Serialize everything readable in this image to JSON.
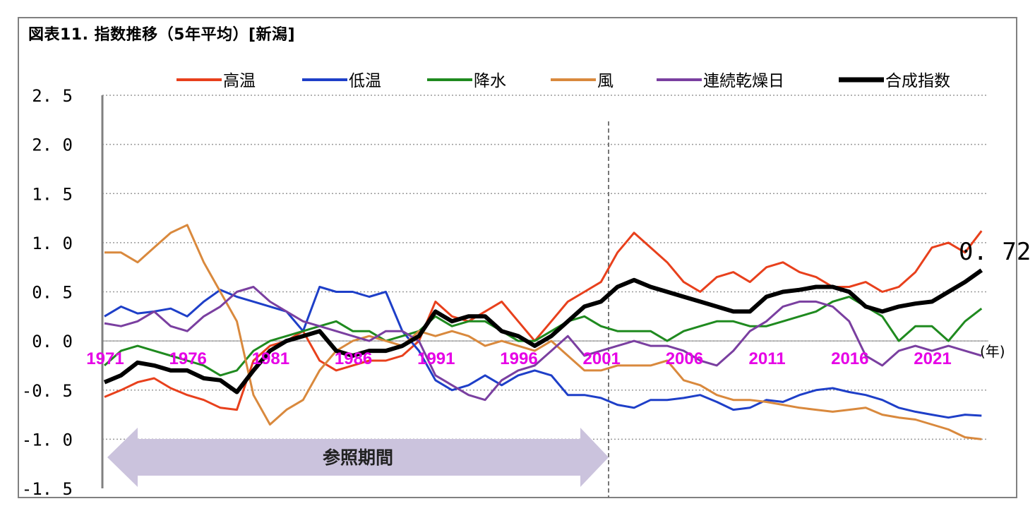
{
  "title": "図表11. 指数推移（5年平均）[新潟]",
  "chart_data": {
    "type": "line",
    "ylim": [
      -1.5,
      2.5
    ],
    "yticks": [
      "2.5",
      "2.0",
      "1.5",
      "1.0",
      "0.5",
      "0.0",
      "-0.5",
      "-1.0",
      "-1.5"
    ],
    "xlim": [
      1971,
      2024
    ],
    "xticks": [
      "1971",
      "1976",
      "1981",
      "1986",
      "1991",
      "1996",
      "2001",
      "2006",
      "2011",
      "2016",
      "2021"
    ],
    "x_unit": "(年)",
    "reference_period_label": "参照期間",
    "final_value_label": "0.72",
    "x": [
      1971,
      1972,
      1973,
      1974,
      1975,
      1976,
      1977,
      1978,
      1979,
      1980,
      1981,
      1982,
      1983,
      1984,
      1985,
      1986,
      1987,
      1988,
      1989,
      1990,
      1991,
      1992,
      1993,
      1994,
      1995,
      1996,
      1997,
      1998,
      1999,
      2000,
      2001,
      2002,
      2003,
      2004,
      2005,
      2006,
      2007,
      2008,
      2009,
      2010,
      2011,
      2012,
      2013,
      2014,
      2015,
      2016,
      2017,
      2018,
      2019,
      2020,
      2021,
      2022,
      2023,
      2024
    ],
    "series": [
      {
        "name": "高温",
        "color": "#e8401c",
        "width": 3,
        "values": [
          -0.57,
          -0.5,
          -0.42,
          -0.38,
          -0.48,
          -0.55,
          -0.6,
          -0.68,
          -0.7,
          -0.2,
          -0.05,
          0.0,
          0.1,
          -0.2,
          -0.3,
          -0.25,
          -0.2,
          -0.2,
          -0.15,
          0.0,
          0.4,
          0.25,
          0.2,
          0.3,
          0.4,
          0.2,
          0.0,
          0.2,
          0.4,
          0.5,
          0.6,
          0.9,
          1.1,
          0.95,
          0.8,
          0.6,
          0.5,
          0.65,
          0.7,
          0.6,
          0.75,
          0.8,
          0.7,
          0.65,
          0.55,
          0.55,
          0.6,
          0.5,
          0.55,
          0.7,
          0.95,
          1.0,
          0.9,
          1.12
        ]
      },
      {
        "name": "低温",
        "color": "#1e3fc8",
        "width": 3,
        "values": [
          0.25,
          0.35,
          0.28,
          0.3,
          0.33,
          0.25,
          0.4,
          0.52,
          0.45,
          0.4,
          0.35,
          0.3,
          0.1,
          0.55,
          0.5,
          0.5,
          0.45,
          0.5,
          0.1,
          -0.1,
          -0.4,
          -0.5,
          -0.45,
          -0.35,
          -0.45,
          -0.35,
          -0.3,
          -0.35,
          -0.55,
          -0.55,
          -0.58,
          -0.65,
          -0.68,
          -0.6,
          -0.6,
          -0.58,
          -0.55,
          -0.62,
          -0.7,
          -0.68,
          -0.6,
          -0.62,
          -0.55,
          -0.5,
          -0.48,
          -0.52,
          -0.55,
          -0.6,
          -0.68,
          -0.72,
          -0.75,
          -0.78,
          -0.75,
          -0.76
        ]
      },
      {
        "name": "降水",
        "color": "#1f8a1f",
        "width": 3,
        "values": [
          -0.25,
          -0.1,
          -0.05,
          -0.1,
          -0.15,
          -0.2,
          -0.25,
          -0.35,
          -0.3,
          -0.1,
          0.0,
          0.05,
          0.1,
          0.15,
          0.2,
          0.1,
          0.1,
          0.0,
          0.05,
          0.1,
          0.25,
          0.15,
          0.2,
          0.2,
          0.1,
          0.0,
          0.0,
          0.1,
          0.2,
          0.25,
          0.15,
          0.1,
          0.1,
          0.1,
          0.0,
          0.1,
          0.15,
          0.2,
          0.2,
          0.15,
          0.15,
          0.2,
          0.25,
          0.3,
          0.4,
          0.45,
          0.35,
          0.25,
          0.0,
          0.15,
          0.15,
          0.0,
          0.2,
          0.33
        ]
      },
      {
        "name": "風",
        "color": "#d9893d",
        "width": 3,
        "values": [
          0.9,
          0.9,
          0.8,
          0.95,
          1.1,
          1.18,
          0.8,
          0.5,
          0.2,
          -0.55,
          -0.85,
          -0.7,
          -0.6,
          -0.3,
          -0.1,
          0.0,
          0.05,
          0.0,
          -0.05,
          0.1,
          0.05,
          0.1,
          0.05,
          -0.05,
          0.0,
          -0.05,
          -0.1,
          0.0,
          -0.15,
          -0.3,
          -0.3,
          -0.25,
          -0.25,
          -0.25,
          -0.2,
          -0.4,
          -0.45,
          -0.55,
          -0.6,
          -0.6,
          -0.62,
          -0.65,
          -0.68,
          -0.7,
          -0.72,
          -0.7,
          -0.68,
          -0.75,
          -0.78,
          -0.8,
          -0.85,
          -0.9,
          -0.98,
          -1.0
        ]
      },
      {
        "name": "連続乾燥日",
        "color": "#7a3fa0",
        "width": 3,
        "values": [
          0.18,
          0.15,
          0.2,
          0.3,
          0.15,
          0.1,
          0.25,
          0.35,
          0.5,
          0.55,
          0.4,
          0.3,
          0.2,
          0.15,
          0.1,
          0.05,
          0.0,
          0.1,
          0.1,
          0.0,
          -0.35,
          -0.45,
          -0.55,
          -0.6,
          -0.4,
          -0.3,
          -0.25,
          -0.1,
          0.05,
          -0.15,
          -0.1,
          -0.05,
          0.0,
          -0.05,
          -0.05,
          -0.1,
          -0.2,
          -0.25,
          -0.1,
          0.1,
          0.2,
          0.35,
          0.4,
          0.4,
          0.35,
          0.2,
          -0.15,
          -0.25,
          -0.1,
          -0.05,
          -0.1,
          -0.05,
          -0.1,
          -0.15
        ]
      },
      {
        "name": "合成指数",
        "color": "#000000",
        "width": 6,
        "values": [
          -0.42,
          -0.35,
          -0.22,
          -0.25,
          -0.3,
          -0.3,
          -0.38,
          -0.4,
          -0.52,
          -0.3,
          -0.1,
          0.0,
          0.05,
          0.1,
          -0.1,
          -0.15,
          -0.1,
          -0.1,
          -0.05,
          0.05,
          0.3,
          0.2,
          0.25,
          0.25,
          0.1,
          0.05,
          -0.05,
          0.05,
          0.2,
          0.35,
          0.4,
          0.55,
          0.62,
          0.55,
          0.5,
          0.45,
          0.4,
          0.35,
          0.3,
          0.3,
          0.45,
          0.5,
          0.52,
          0.55,
          0.55,
          0.5,
          0.35,
          0.3,
          0.35,
          0.38,
          0.4,
          0.5,
          0.6,
          0.72
        ]
      }
    ]
  }
}
